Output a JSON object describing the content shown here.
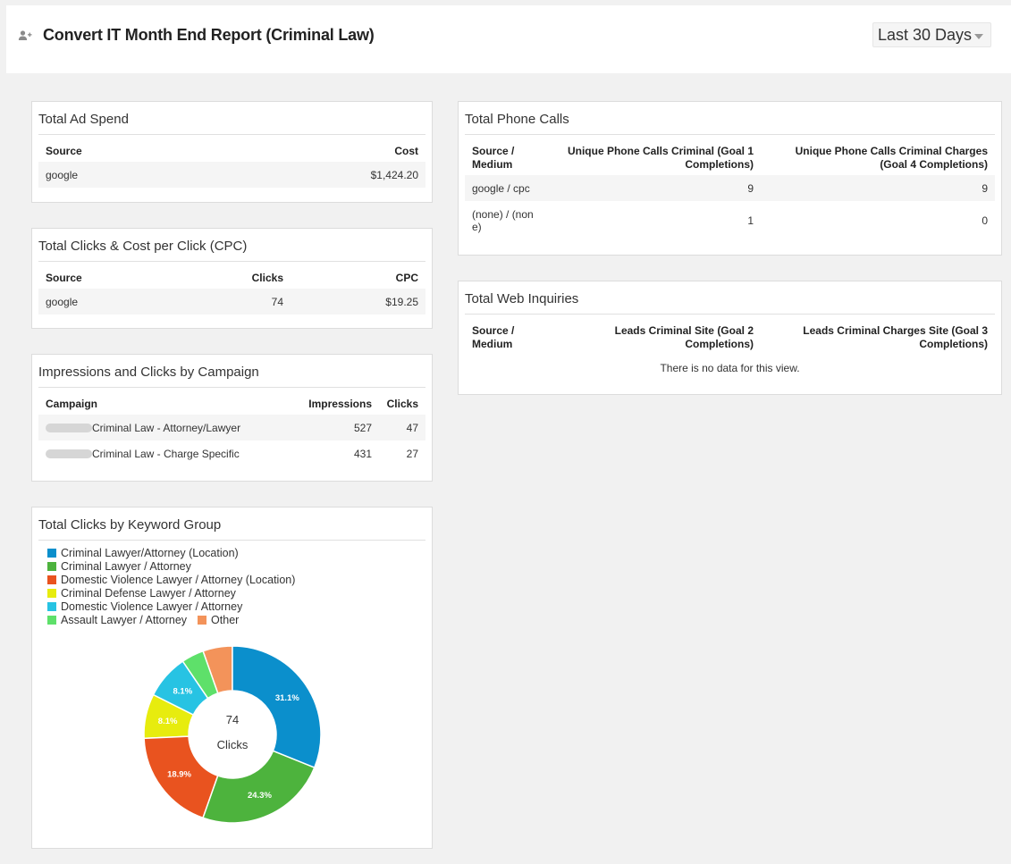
{
  "header": {
    "title": "Convert IT Month End Report (Criminal Law)",
    "date_range": "Last 30 Days"
  },
  "ad_spend": {
    "title": "Total Ad Spend",
    "columns": [
      "Source",
      "Cost"
    ],
    "rows": [
      [
        "google",
        "$1,424.20"
      ]
    ]
  },
  "clicks_cpc": {
    "title": "Total Clicks & Cost per Click (CPC)",
    "columns": [
      "Source",
      "Clicks",
      "CPC"
    ],
    "rows": [
      [
        "google",
        "74",
        "$19.25"
      ]
    ]
  },
  "campaigns": {
    "title": "Impressions and Clicks by Campaign",
    "columns": [
      "Campaign",
      "Impressions",
      "Clicks"
    ],
    "rows": [
      [
        "Criminal Law - Attorney/Lawyer",
        "527",
        "47"
      ],
      [
        "Criminal Law - Charge Specific",
        "431",
        "27"
      ]
    ]
  },
  "phone_calls": {
    "title": "Total Phone Calls",
    "columns": [
      "Source / Medium",
      "Unique Phone Calls Criminal (Goal 1 Completions)",
      "Unique Phone Calls Criminal Charges (Goal 4 Completions)"
    ],
    "rows": [
      [
        "google / cpc",
        "9",
        "9"
      ],
      [
        "(none) / (none)",
        "1",
        "0"
      ]
    ]
  },
  "web_inquiries": {
    "title": "Total Web Inquiries",
    "columns": [
      "Source / Medium",
      "Leads Criminal Site (Goal 2 Completions)",
      "Leads Criminal Charges Site (Goal 3 Completions)"
    ],
    "empty_message": "There is no data for this view."
  },
  "keyword_groups": {
    "title": "Total Clicks by Keyword Group",
    "total_value": "74",
    "total_label": "Clicks"
  },
  "chart_data": {
    "type": "pie",
    "title": "Total Clicks by Keyword Group",
    "donut": true,
    "total": 74,
    "legend_position": "top",
    "categories": [
      "Criminal Lawyer/Attorney (Location)",
      "Criminal Lawyer / Attorney",
      "Domestic Violence Lawyer / Attorney (Location)",
      "Criminal Defense Lawyer / Attorney",
      "Domestic Violence Lawyer / Attorney",
      "Assault Lawyer / Attorney",
      "Other"
    ],
    "values": [
      31.1,
      24.3,
      18.9,
      8.1,
      8.1,
      4.1,
      5.4
    ],
    "value_labels": [
      "31.1%",
      "24.3%",
      "18.9%",
      "8.1%",
      "8.1%",
      "",
      ""
    ],
    "colors": [
      "#0b8fcc",
      "#4db33d",
      "#e9531f",
      "#e7ec0e",
      "#27c3e3",
      "#5ee06a",
      "#f3935a"
    ]
  }
}
